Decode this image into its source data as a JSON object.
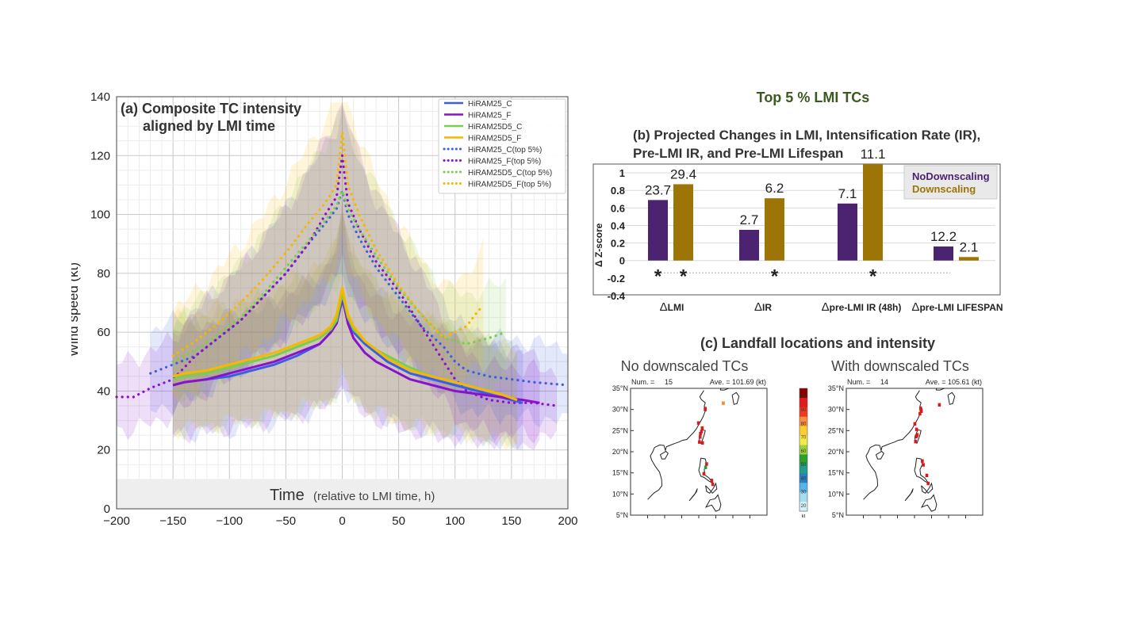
{
  "panel_a": {
    "chart_data": {
      "type": "line",
      "title_line1": "(a) Composite TC intensity",
      "title_line2": "aligned by LMI time",
      "xlabel": "Time",
      "xlabel_note": "(relative to LMI time, h)",
      "ylabel": "Wind speed (kt)",
      "xlim": [
        -200,
        200
      ],
      "ylim": [
        0,
        140
      ],
      "xticks": [
        "−200",
        "−150",
        "−100",
        "−50",
        "0",
        "50",
        "100",
        "150",
        "200"
      ],
      "xtick_values": [
        -200,
        -150,
        -100,
        -50,
        0,
        50,
        100,
        150,
        200
      ],
      "yticks": [
        "0",
        "20",
        "40",
        "60",
        "80",
        "100",
        "120",
        "140"
      ],
      "ytick_values": [
        0,
        20,
        40,
        60,
        80,
        100,
        120,
        140
      ],
      "series": [
        {
          "name": "HiRAM25_C",
          "color": "#3b5fe0",
          "style": "solid",
          "x": [
            -150,
            -140,
            -120,
            -100,
            -80,
            -60,
            -40,
            -20,
            -10,
            -5,
            0,
            5,
            10,
            20,
            30,
            40,
            50,
            60,
            80,
            100,
            120,
            140,
            160
          ],
          "y": [
            42,
            43,
            44,
            45,
            47,
            49,
            52,
            56,
            60,
            63,
            71,
            64,
            60,
            56,
            53,
            50,
            48,
            46,
            44,
            42,
            40,
            38,
            36
          ]
        },
        {
          "name": "HiRAM25_F",
          "color": "#8a12cc",
          "style": "solid",
          "x": [
            -150,
            -140,
            -120,
            -100,
            -80,
            -60,
            -40,
            -20,
            -10,
            -5,
            0,
            5,
            10,
            20,
            30,
            40,
            50,
            60,
            80,
            100,
            120,
            140,
            160,
            175
          ],
          "y": [
            42,
            43,
            44,
            46,
            48,
            50,
            53,
            56,
            60,
            63,
            72,
            63,
            58,
            53,
            50,
            48,
            46,
            44,
            42,
            40,
            39,
            38,
            37,
            36
          ]
        },
        {
          "name": "HiRAM25D5_C",
          "color": "#7ccc4e",
          "style": "solid",
          "x": [
            -150,
            -140,
            -120,
            -100,
            -80,
            -60,
            -40,
            -20,
            -10,
            -5,
            0,
            5,
            10,
            20,
            30,
            40,
            50,
            60,
            80,
            100,
            120,
            140,
            155
          ],
          "y": [
            44,
            45,
            46,
            48,
            50,
            52,
            55,
            58,
            61,
            64,
            73,
            65,
            61,
            57,
            54,
            52,
            50,
            48,
            45,
            43,
            41,
            39,
            37
          ]
        },
        {
          "name": "HiRAM25D5_F",
          "color": "#f5b800",
          "style": "solid",
          "x": [
            -150,
            -140,
            -120,
            -100,
            -80,
            -60,
            -40,
            -20,
            -10,
            -5,
            0,
            5,
            10,
            20,
            30,
            40,
            50,
            60,
            80,
            100,
            120,
            140,
            155
          ],
          "y": [
            45,
            46,
            47,
            49,
            51,
            53,
            56,
            59,
            62,
            66,
            75,
            66,
            62,
            57,
            54,
            51,
            49,
            47,
            45,
            43,
            41,
            39,
            37
          ]
        },
        {
          "name": "HiRAM25_C(top 5%)",
          "color": "#3b5fe0",
          "style": "dotted",
          "x": [
            -170,
            -150,
            -130,
            -110,
            -90,
            -70,
            -50,
            -30,
            -15,
            -5,
            0,
            5,
            15,
            30,
            50,
            70,
            90,
            100,
            110,
            130,
            150,
            170,
            200
          ],
          "y": [
            46,
            49,
            52,
            58,
            64,
            72,
            80,
            90,
            97,
            102,
            108,
            100,
            92,
            82,
            72,
            62,
            55,
            50,
            47,
            45,
            44,
            43,
            42
          ]
        },
        {
          "name": "HiRAM25_F(top 5%)",
          "color": "#8a12cc",
          "style": "dotted",
          "x": [
            -200,
            -185,
            -170,
            -150,
            -130,
            -110,
            -90,
            -70,
            -50,
            -30,
            -15,
            -5,
            0,
            5,
            15,
            30,
            50,
            70,
            90,
            100,
            110,
            130,
            150,
            170,
            190
          ],
          "y": [
            38,
            38,
            41,
            44,
            52,
            58,
            64,
            72,
            80,
            90,
            100,
            106,
            120,
            104,
            95,
            84,
            74,
            62,
            50,
            44,
            40,
            37,
            36,
            36,
            35
          ]
        },
        {
          "name": "HiRAM25D5_C(top 5%)",
          "color": "#7ccc4e",
          "style": "dotted",
          "x": [
            -150,
            -130,
            -110,
            -90,
            -70,
            -50,
            -30,
            -15,
            -5,
            0,
            5,
            15,
            30,
            50,
            70,
            90,
            110,
            130,
            145
          ],
          "y": [
            50,
            54,
            59,
            65,
            73,
            82,
            91,
            98,
            103,
            108,
            102,
            95,
            86,
            75,
            66,
            58,
            56,
            58,
            60
          ]
        },
        {
          "name": "HiRAM25D5_F(top 5%)",
          "color": "#f5b800",
          "style": "dotted",
          "x": [
            -150,
            -130,
            -110,
            -90,
            -70,
            -50,
            -30,
            -15,
            -5,
            0,
            5,
            15,
            30,
            50,
            70,
            90,
            110,
            120,
            125
          ],
          "y": [
            52,
            57,
            63,
            70,
            78,
            87,
            97,
            104,
            110,
            128,
            110,
            100,
            88,
            76,
            66,
            58,
            62,
            67,
            69
          ]
        }
      ]
    }
  },
  "panel_b": {
    "heading": "Top 5 % LMI TCs",
    "chart_data": {
      "type": "bar",
      "title_line1": "(b) Projected Changes in LMI, Intensification Rate (IR),",
      "title_line2": "Pre-LMI IR, and Pre-LMI Lifespan",
      "ylabel": "Δ Z-score",
      "ylim": [
        -0.4,
        1.1
      ],
      "yticks": [
        "-0.4",
        "-0.2",
        "0",
        "0.2",
        "0.4",
        "0.6",
        "0.8",
        "1"
      ],
      "ytick_values": [
        -0.4,
        -0.2,
        0,
        0.2,
        0.4,
        0.6,
        0.8,
        1
      ],
      "category_prefix": "Δ",
      "categories": [
        "LMI",
        "IR",
        "pre-LMI IR (48h)",
        "pre-LMI LIFESPAN"
      ],
      "series": [
        {
          "name": "NoDownscaling",
          "color": "#4b2370",
          "values": [
            0.69,
            0.35,
            0.65,
            0.16
          ],
          "labels": [
            "23.7",
            "2.7",
            "7.1",
            "12.2"
          ],
          "significant": [
            true,
            false,
            false,
            false
          ]
        },
        {
          "name": "Downscaling",
          "color": "#9c7506",
          "values": [
            0.87,
            0.71,
            1.1,
            0.04
          ],
          "labels": [
            "29.4",
            "6.2",
            "11.1",
            "2.1"
          ],
          "significant": [
            true,
            true,
            true,
            false
          ]
        }
      ],
      "significance_mark": "*"
    }
  },
  "panel_c": {
    "title": "(c) Landfall locations and intensity",
    "maps": [
      {
        "title": "No downscaled TCs",
        "num_label": "Num. =",
        "num": "15",
        "ave_label": "Ave. = 101.69 (kt)",
        "points": [
          [
            121.9,
            30.2
          ],
          [
            119.9,
            26.8
          ],
          [
            121.0,
            25.6
          ],
          [
            120.5,
            24.3
          ],
          [
            120.4,
            23.5
          ],
          [
            120.2,
            22.3
          ],
          [
            121.1,
            22.1
          ],
          [
            122.0,
            16.3
          ],
          [
            123.8,
            13.2
          ],
          [
            124.1,
            12.3
          ],
          [
            121.9,
            30.0
          ],
          [
            127.2,
            31.5
          ],
          [
            121.5,
            14.8
          ],
          [
            120.8,
            24.8
          ],
          [
            122.3,
            17.1
          ]
        ],
        "point_colors": [
          "#d81b1b",
          "#d81b1b",
          "#d81b1b",
          "#d81b1b",
          "#d81b1b",
          "#d81b1b",
          "#d81b1b",
          "#1a9e3a",
          "#d81b1b",
          "#d81b1b",
          "#d81b1b",
          "#f08a2a",
          "#d81b1b",
          "#d81b1b",
          "#d81b1b"
        ]
      },
      {
        "title": "With downscaled TCs",
        "num_label": "Num. =",
        "num": "14",
        "ave_label": "Ave. = 105.61 (kt)",
        "points": [
          [
            121.8,
            30.3
          ],
          [
            122.0,
            29.6
          ],
          [
            121.6,
            29.0
          ],
          [
            120.1,
            26.6
          ],
          [
            120.6,
            25.3
          ],
          [
            120.5,
            23.6
          ],
          [
            120.3,
            22.4
          ],
          [
            122.3,
            17.8
          ],
          [
            122.6,
            16.9
          ],
          [
            123.6,
            14.4
          ],
          [
            124.0,
            12.5
          ],
          [
            127.3,
            31.1
          ],
          [
            121.9,
            29.9
          ],
          [
            120.8,
            24.0
          ]
        ],
        "point_colors": [
          "#d81b1b",
          "#d81b1b",
          "#d81b1b",
          "#d81b1b",
          "#d81b1b",
          "#d81b1b",
          "#d81b1b",
          "#d81b1b",
          "#d81b1b",
          "#d81b1b",
          "#d81b1b",
          "#d81b1b",
          "#d81b1b",
          "#d81b1b"
        ]
      }
    ],
    "lat_ticks": [
      "35°N",
      "30°N",
      "25°N",
      "20°N",
      "15°N",
      "10°N",
      "5°N"
    ],
    "lat_values": [
      35,
      30,
      25,
      20,
      15,
      10,
      5
    ],
    "colorbar": {
      "labels": [
        "100",
        "90",
        "80",
        "70",
        "60",
        "50",
        "40",
        "30",
        "20"
      ],
      "unit": "kt",
      "colors": [
        "#8b0000",
        "#e31a1c",
        "#f03b20",
        "#fd8d3c",
        "#fecc33",
        "#f5e84c",
        "#9ed13a",
        "#2ca02c",
        "#1f9e89",
        "#2a7fc0",
        "#56b4e9",
        "#a6dcef",
        "#d6f0f8"
      ]
    }
  }
}
